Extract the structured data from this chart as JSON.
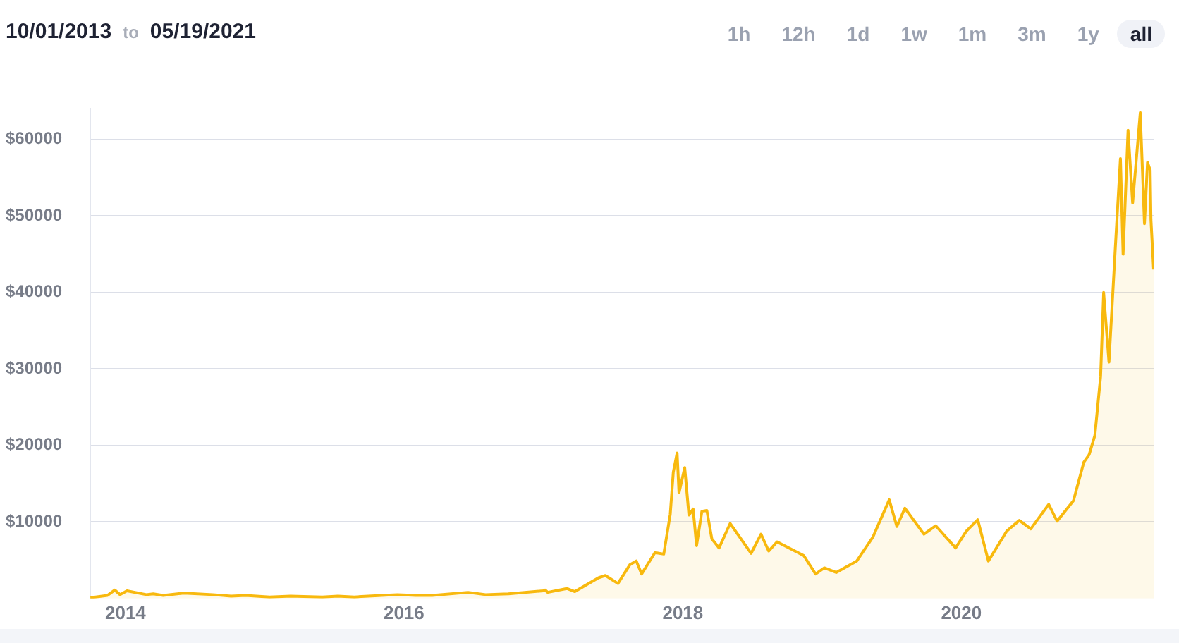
{
  "chart_data": {
    "type": "area",
    "title": "10/01/2013 to 05/19/2021",
    "annotations": [
      "1h",
      "12h",
      "1d",
      "1w",
      "1m",
      "3m",
      "1y",
      "all"
    ],
    "x": [
      "2013-10-01",
      "2013-11-15",
      "2013-12-04",
      "2013-12-18",
      "2014-01-05",
      "2014-02-25",
      "2014-03-15",
      "2014-04-10",
      "2014-06-03",
      "2014-08-18",
      "2014-10-05",
      "2014-11-12",
      "2015-01-14",
      "2015-03-10",
      "2015-06-01",
      "2015-07-12",
      "2015-08-24",
      "2015-11-04",
      "2015-12-15",
      "2016-02-01",
      "2016-03-15",
      "2016-06-17",
      "2016-08-02",
      "2016-10-01",
      "2016-12-31",
      "2017-01-05",
      "2017-01-12",
      "2017-03-03",
      "2017-03-24",
      "2017-05-25",
      "2017-06-12",
      "2017-07-15",
      "2017-08-15",
      "2017-09-01",
      "2017-09-15",
      "2017-10-20",
      "2017-11-12",
      "2017-11-29",
      "2017-12-07",
      "2017-12-17",
      "2017-12-22",
      "2018-01-06",
      "2018-01-17",
      "2018-01-28",
      "2018-02-06",
      "2018-02-20",
      "2018-03-05",
      "2018-03-18",
      "2018-04-06",
      "2018-05-05",
      "2018-06-29",
      "2018-07-25",
      "2018-08-14",
      "2018-09-05",
      "2018-10-10",
      "2018-11-14",
      "2018-12-15",
      "2019-01-07",
      "2019-02-07",
      "2019-04-02",
      "2019-05-14",
      "2019-06-26",
      "2019-07-16",
      "2019-08-06",
      "2019-09-25",
      "2019-10-26",
      "2019-12-17",
      "2020-01-14",
      "2020-02-13",
      "2020-03-12",
      "2020-04-29",
      "2020-06-01",
      "2020-07-01",
      "2020-08-17",
      "2020-09-08",
      "2020-10-21",
      "2020-11-17",
      "2020-12-01",
      "2020-12-16",
      "2020-12-31",
      "2021-01-08",
      "2021-01-22",
      "2021-02-08",
      "2021-02-21",
      "2021-02-28",
      "2021-03-13",
      "2021-03-25",
      "2021-04-14",
      "2021-04-25",
      "2021-05-03",
      "2021-05-10",
      "2021-05-12",
      "2021-05-19"
    ],
    "series": [
      {
        "color": "#f8b90e",
        "values": [
          100,
          400,
          1100,
          500,
          1000,
          500,
          600,
          400,
          700,
          500,
          300,
          400,
          200,
          300,
          200,
          300,
          200,
          400,
          500,
          400,
          400,
          800,
          500,
          600,
          1000,
          1100,
          800,
          1300,
          900,
          2700,
          3000,
          1950,
          4400,
          4900,
          3200,
          6000,
          5800,
          11000,
          16500,
          19000,
          13800,
          17100,
          10900,
          11700,
          6900,
          11400,
          11500,
          7800,
          6600,
          9800,
          5900,
          8400,
          6200,
          7400,
          6500,
          5600,
          3200,
          4000,
          3400,
          4900,
          8000,
          12900,
          9400,
          11800,
          8400,
          9500,
          6600,
          8800,
          10300,
          4900,
          8800,
          10200,
          9100,
          12300,
          10100,
          12800,
          17800,
          18800,
          21300,
          29000,
          40000,
          30900,
          46200,
          57500,
          45000,
          61200,
          51700,
          63500,
          49000,
          57000,
          56000,
          49500,
          43000
        ]
      }
    ],
    "xlim": [
      "2013-10-01",
      "2021-05-19"
    ],
    "xticks": [
      "2014",
      "2016",
      "2018",
      "2020"
    ],
    "ylim": [
      0,
      64000
    ],
    "yticks": [
      {
        "value": 10000,
        "label": "$10000"
      },
      {
        "value": 20000,
        "label": "$20000"
      },
      {
        "value": 30000,
        "label": "$30000"
      },
      {
        "value": 40000,
        "label": "$40000"
      },
      {
        "value": 50000,
        "label": "$50000"
      },
      {
        "value": 60000,
        "label": "$60000"
      }
    ],
    "grid": "y",
    "legend": false,
    "marker": "none",
    "line_style": "solid"
  }
}
